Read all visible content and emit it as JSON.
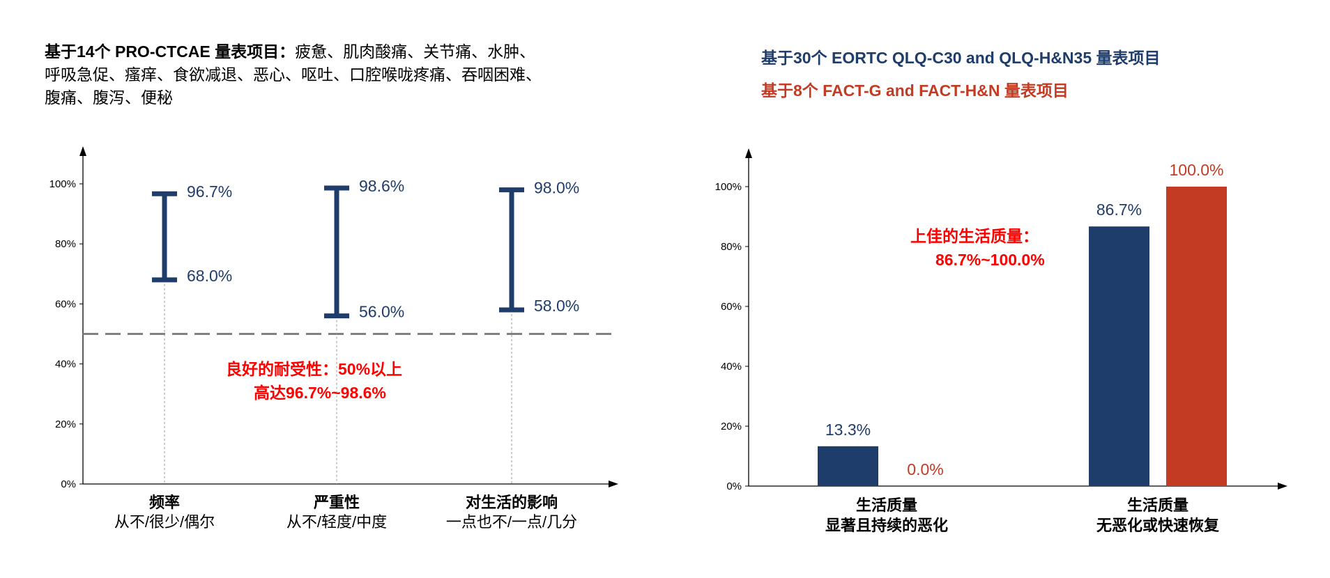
{
  "left_title": {
    "bold": "基于14个 PRO-CTCAE 量表项目：",
    "line1": "疲惫、肌肉酸痛、关节痛、水肿、",
    "line2": "呼吸急促、瘙痒、食欲减退、恶心、呕吐、口腔喉咙疼痛、吞咽困难、",
    "line3": "腹痛、腹泻、便秘"
  },
  "right_title": {
    "line1": "基于30个 EORTC QLQ-C30 and QLQ-H&N35 量表项目",
    "line2": "基于8个 FACT-G and FACT-H&N 量表项目"
  },
  "colors": {
    "navy": "#1f3d6b",
    "orange": "#c23b22",
    "red": "#ff0000",
    "dashed": "#808080"
  },
  "chart_data": [
    {
      "type": "range",
      "ylim": [
        0,
        100
      ],
      "yticks": [
        "0%",
        "20%",
        "40%",
        "60%",
        "80%",
        "100%"
      ],
      "categories": [
        {
          "label": "频率",
          "sublabel": "从不/很少/偶尔",
          "low": 68.0,
          "high": 96.7,
          "low_label": "68.0%",
          "high_label": "96.7%"
        },
        {
          "label": "严重性",
          "sublabel": "从不/轻度/中度",
          "low": 56.0,
          "high": 98.6,
          "low_label": "56.0%",
          "high_label": "98.6%"
        },
        {
          "label": "对生活的影响",
          "sublabel": "一点也不/一点/几分",
          "low": 58.0,
          "high": 98.0,
          "low_label": "58.0%",
          "high_label": "98.0%"
        }
      ],
      "reference_line": 50,
      "annotation": {
        "line1": "良好的耐受性：50%以上",
        "line2": "高达96.7%~98.6%"
      }
    },
    {
      "type": "bar",
      "ylim": [
        0,
        100
      ],
      "yticks": [
        "0%",
        "20%",
        "40%",
        "60%",
        "80%",
        "100%"
      ],
      "categories": [
        {
          "label": "生活质量",
          "sublabel": "显著且持续的恶化"
        },
        {
          "label": "生活质量",
          "sublabel": "无恶化或快速恢复"
        }
      ],
      "series": [
        {
          "name": "基于30个 EORTC QLQ-C30 and QLQ-H&N35 量表项目",
          "color": "#1f3d6b",
          "values": [
            13.3,
            86.7
          ],
          "labels": [
            "13.3%",
            "86.7%"
          ]
        },
        {
          "name": "基于8个 FACT-G and FACT-H&N 量表项目",
          "color": "#c23b22",
          "values": [
            0.0,
            100.0
          ],
          "labels": [
            "0.0%",
            "100.0%"
          ]
        }
      ],
      "annotation": {
        "line1": "上佳的生活质量：",
        "line2": "86.7%~100.0%"
      }
    }
  ]
}
